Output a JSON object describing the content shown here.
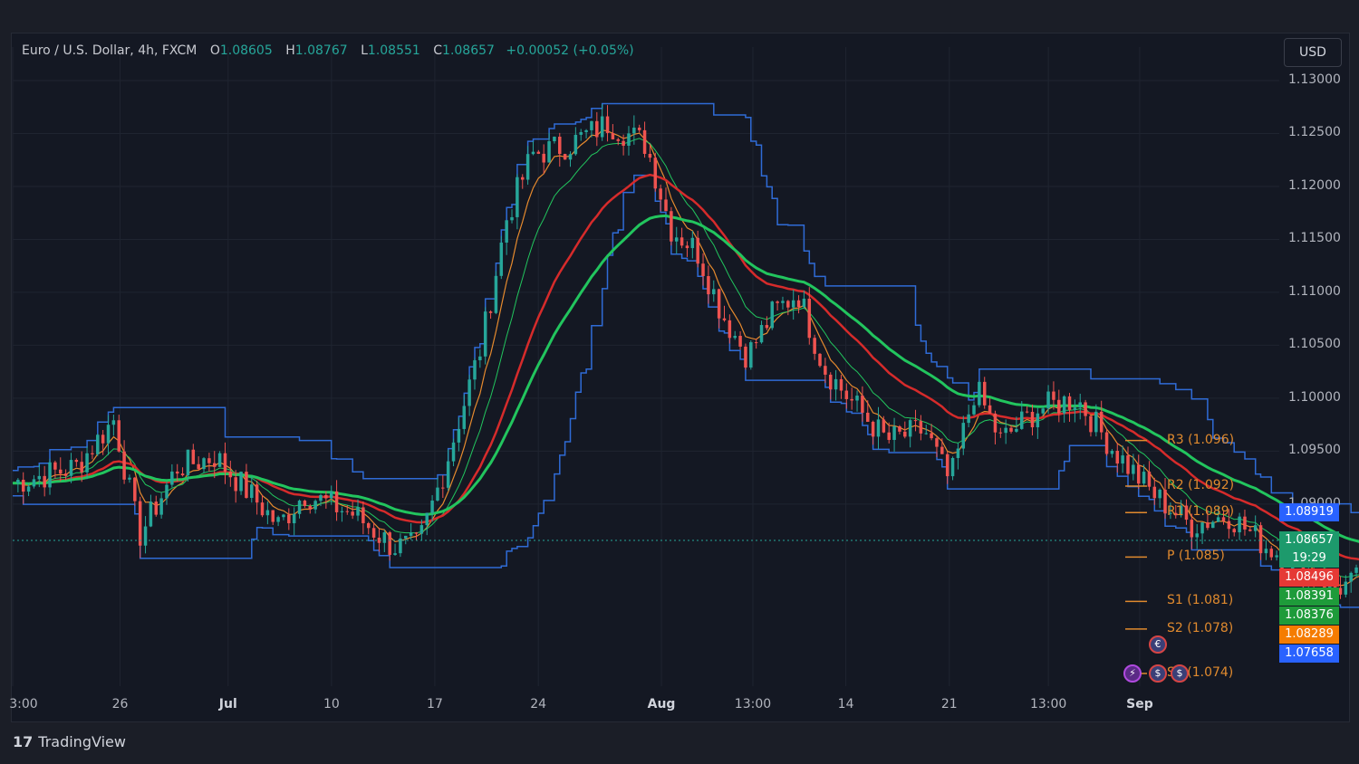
{
  "header": {
    "symbol": "Euro / U.S. Dollar, 4h, FXCM",
    "o_label": "O",
    "o_value": "1.08605",
    "h_label": "H",
    "h_value": "1.08767",
    "l_label": "L",
    "l_value": "1.08551",
    "c_label": "C",
    "c_value": "1.08657",
    "change": "+0.00052 (+0.05%)",
    "currency": "USD"
  },
  "brand": {
    "name": "TradingView"
  },
  "colors": {
    "up": "#26a69a",
    "down": "#ef5350",
    "channel": "#2f6bd6",
    "channel_fill": "rgba(47,107,214,0.12)",
    "pivot": "#e08a2e",
    "green_ma": "#22c55e",
    "red_ma": "#d62b2b",
    "orange_ma": "#e68a2e"
  },
  "chart_data": {
    "type": "candlestick",
    "ylim": [
      1.0728,
      1.1306
    ],
    "y_ticks": [
      "1.13000",
      "1.12500",
      "1.12000",
      "1.11500",
      "1.11000",
      "1.10500",
      "1.10000",
      "1.09500",
      "1.09000"
    ],
    "x_ticks": [
      {
        "label": "3:00",
        "pos": 0.0,
        "bold": false
      },
      {
        "label": "26",
        "pos": 0.0848,
        "bold": false
      },
      {
        "label": "Jul",
        "pos": 0.1701,
        "bold": true
      },
      {
        "label": "10",
        "pos": 0.2517,
        "bold": false
      },
      {
        "label": "17",
        "pos": 0.3333,
        "bold": false
      },
      {
        "label": "24",
        "pos": 0.415,
        "bold": false
      },
      {
        "label": "Aug",
        "pos": 0.5122,
        "bold": true
      },
      {
        "label": "13:00",
        "pos": 0.5844,
        "bold": false
      },
      {
        "label": "14",
        "pos": 0.6578,
        "bold": false
      },
      {
        "label": "21",
        "pos": 0.7395,
        "bold": false
      },
      {
        "label": "13:00",
        "pos": 0.8177,
        "bold": false
      },
      {
        "label": "Sep",
        "pos": 0.8898,
        "bold": true
      }
    ],
    "anchors": [
      [
        0.0,
        1.092
      ],
      [
        0.05,
        1.0935
      ],
      [
        0.08,
        1.098
      ],
      [
        0.1,
        1.087
      ],
      [
        0.13,
        1.0935
      ],
      [
        0.16,
        1.0945
      ],
      [
        0.21,
        1.088
      ],
      [
        0.23,
        1.091
      ],
      [
        0.27,
        1.089
      ],
      [
        0.3,
        1.086
      ],
      [
        0.32,
        1.086
      ],
      [
        0.34,
        1.093
      ],
      [
        0.37,
        1.105
      ],
      [
        0.39,
        1.117
      ],
      [
        0.41,
        1.123
      ],
      [
        0.44,
        1.124
      ],
      [
        0.47,
        1.126
      ],
      [
        0.5,
        1.124
      ],
      [
        0.52,
        1.116
      ],
      [
        0.54,
        1.114
      ],
      [
        0.56,
        1.108
      ],
      [
        0.58,
        1.104
      ],
      [
        0.6,
        1.108
      ],
      [
        0.62,
        1.11
      ],
      [
        0.64,
        1.103
      ],
      [
        0.66,
        1.1
      ],
      [
        0.69,
        1.096
      ],
      [
        0.72,
        1.097
      ],
      [
        0.74,
        1.092
      ],
      [
        0.76,
        1.101
      ],
      [
        0.78,
        1.096
      ],
      [
        0.81,
        1.099
      ],
      [
        0.84,
        1.1
      ],
      [
        0.87,
        1.095
      ],
      [
        0.9,
        1.091
      ],
      [
        0.93,
        1.088
      ],
      [
        0.96,
        1.089
      ],
      [
        0.99,
        1.086
      ],
      [
        1.02,
        1.084
      ],
      [
        1.04,
        1.082
      ],
      [
        1.06,
        1.0825
      ],
      [
        1.08,
        1.0885
      ],
      [
        1.086,
        1.0866
      ]
    ],
    "plot_x_end": 1.086,
    "pivot_levels": [
      {
        "label": "R3 (1.096)",
        "value": 1.096
      },
      {
        "label": "R2 (1.092)",
        "value": 1.0917
      },
      {
        "label": "R1 (1.089)",
        "value": 1.0892
      },
      {
        "label": "P (1.085)",
        "value": 1.085
      },
      {
        "label": "S1 (1.081)",
        "value": 1.0808
      },
      {
        "label": "S2 (1.078)",
        "value": 1.0782
      },
      {
        "label": "S3 (1.074)",
        "value": 1.074
      }
    ],
    "current_price": 1.08657,
    "countdown": "19:29",
    "price_tags": [
      {
        "text": "1.08919",
        "value": 1.08919,
        "color": "#2962ff"
      },
      {
        "text": "1.08657",
        "value": 1.08657,
        "color": "#1d9a6c",
        "countdown": true
      },
      {
        "text": "1.08496",
        "value": 1.08496,
        "color": "#e53935"
      },
      {
        "text": "1.08391",
        "value": 1.08391,
        "color": "#1e9b3a"
      },
      {
        "text": "1.08376",
        "value": 1.08376,
        "color": "#1e9b3a"
      },
      {
        "text": "1.08289",
        "value": 1.08289,
        "color": "#f57c00"
      },
      {
        "text": "1.07658",
        "value": 1.07658,
        "color": "#2962ff"
      }
    ]
  }
}
